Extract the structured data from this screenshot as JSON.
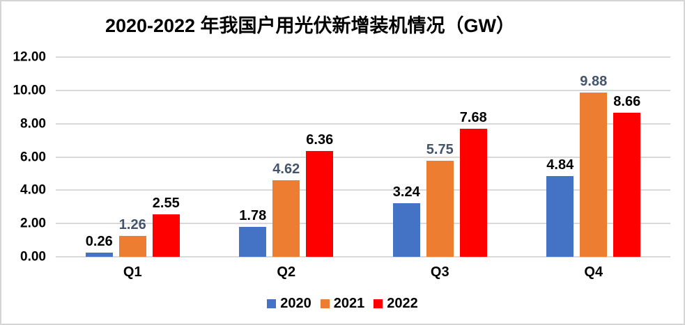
{
  "chart_data": {
    "type": "bar",
    "title": "2020-2022 年我国户用光伏新增装机情况（GW）",
    "categories": [
      "Q1",
      "Q2",
      "Q3",
      "Q4"
    ],
    "series": [
      {
        "name": "2020",
        "color": "#4472C4",
        "label_color": "#000000",
        "values": [
          0.26,
          1.78,
          3.24,
          4.84
        ],
        "labels": [
          "0.26",
          "1.78",
          "3.24",
          "4.84"
        ]
      },
      {
        "name": "2021",
        "color": "#ED7D31",
        "label_color": "#44546A",
        "values": [
          1.26,
          4.62,
          5.75,
          9.88
        ],
        "labels": [
          "1.26",
          "4.62",
          "5.75",
          "9.88"
        ]
      },
      {
        "name": "2022",
        "color": "#FF0000",
        "label_color": "#000000",
        "values": [
          2.55,
          6.36,
          7.68,
          8.66
        ],
        "labels": [
          "2.55",
          "6.36",
          "7.68",
          "8.66"
        ]
      }
    ],
    "xlabel": "",
    "ylabel": "",
    "ylim": [
      0,
      12
    ],
    "y_ticks": [
      "0.00",
      "2.00",
      "4.00",
      "6.00",
      "8.00",
      "10.00",
      "12.00"
    ],
    "grid": true,
    "legend_position": "bottom"
  },
  "colors": {
    "gridline": "#D9D9D9",
    "frame_border": "#D5D5D5",
    "background": "#FFFFFF",
    "title_text": "#000000",
    "axis_text": "#000000"
  }
}
